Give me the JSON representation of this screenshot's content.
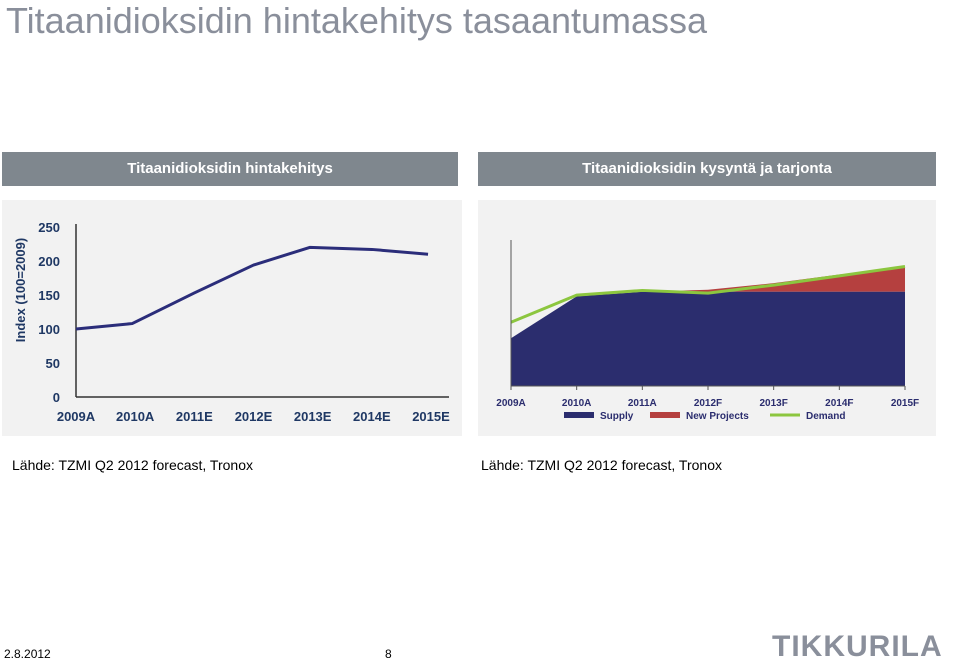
{
  "page": {
    "title": "Titaanidioksidin hintakehitys tasaantumassa",
    "date": "2.8.2012",
    "page_number": "8",
    "logo_text": "TIKKURILA"
  },
  "panels": {
    "left_title": "Titaanidioksidin hintakehitys",
    "right_title": "Titaanidioksidin kysyntä ja tarjonta",
    "left_source": "Lähde: TZMI Q2 2012 forecast, Tronox",
    "right_source": "Lähde: TZMI Q2 2012 forecast, Tronox"
  },
  "colors": {
    "header_bg": "#7f878e",
    "index_line": "#2b2d7a",
    "supply": "#2b2d6e",
    "new_projects": "#b5403f",
    "demand": "#8cc63f"
  },
  "chart_data": [
    {
      "type": "line",
      "ylabel": "Index (100=2009)",
      "categories": [
        "2009A",
        "2010A",
        "2011E",
        "2012E",
        "2013E",
        "2014E",
        "2015E"
      ],
      "x_positions": [
        0,
        1,
        2,
        3,
        4,
        5,
        6
      ],
      "y_ticks": [
        "0",
        "50",
        "100",
        "150",
        "200",
        "250"
      ],
      "ylim": [
        0,
        250
      ],
      "series": [
        {
          "x": [
            0,
            0.95,
            2,
            3,
            3.95,
            5,
            5.95
          ],
          "values": [
            100,
            108,
            153,
            194,
            220,
            217,
            210
          ]
        }
      ]
    },
    {
      "type": "area",
      "categories": [
        "2009A",
        "2010A",
        "2011A",
        "2012F",
        "2013F",
        "2014F",
        "2015F"
      ],
      "ylim": [
        0,
        220
      ],
      "series": [
        {
          "name": "Supply",
          "values": [
            72,
            135,
            142,
            142,
            142,
            142,
            142
          ]
        },
        {
          "name": "New Projects",
          "values": [
            0,
            0,
            0,
            3,
            13,
            26,
            36
          ]
        },
        {
          "name": "Demand",
          "values": [
            96,
            137,
            144,
            140,
            152,
            166,
            180
          ]
        }
      ]
    }
  ]
}
